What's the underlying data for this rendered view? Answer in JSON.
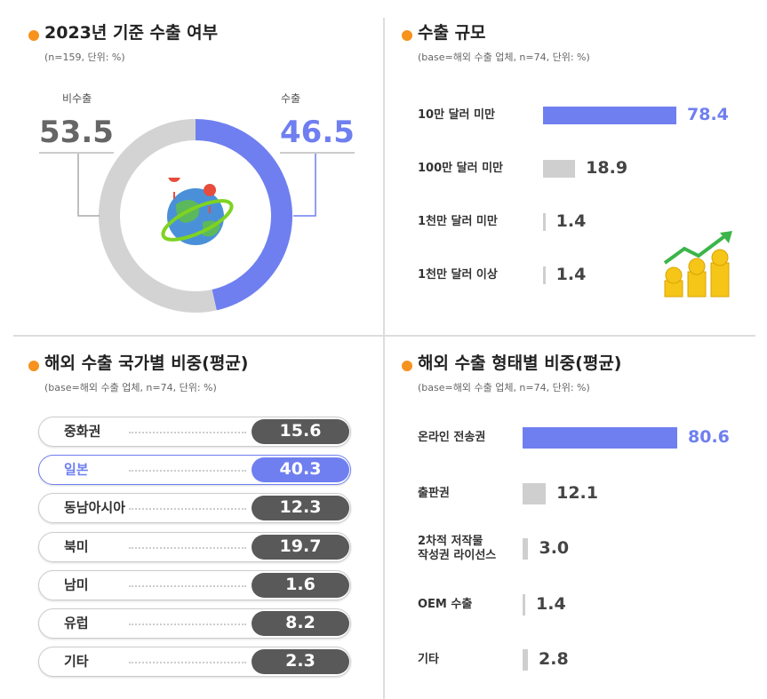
{
  "chart_data": [
    {
      "type": "donut",
      "title": "2023년 기준 수출 여부",
      "subtitle": "(n=159, 단위: %)",
      "categories": [
        "비수출",
        "수출"
      ],
      "values": [
        53.5,
        46.5
      ],
      "colors": [
        "#d3d3d3",
        "#6f7ff0"
      ]
    },
    {
      "type": "bar",
      "title": "수출 규모",
      "subtitle": "(base=해외 수출 업체, n=74, 단위: %)",
      "categories": [
        "10만 달러 미만",
        "100만 달러 미만",
        "1천만 달러 미만",
        "1천만 달러 이상"
      ],
      "values": [
        78.4,
        18.9,
        1.4,
        1.4
      ],
      "colors": [
        "#6f7ff0",
        "#cfcfcf",
        "#cfcfcf",
        "#cfcfcf"
      ]
    },
    {
      "type": "pill",
      "title": "해외 수출 국가별 비중(평균)",
      "subtitle": "(base=해외 수출 업체, n=74, 단위: %)",
      "categories": [
        "중화권",
        "일본",
        "동남아시아",
        "북미",
        "남미",
        "유럽",
        "기타"
      ],
      "values": [
        15.6,
        40.3,
        12.3,
        19.7,
        1.6,
        8.2,
        2.3
      ],
      "colors": [
        "#595959",
        "#6f7ff0",
        "#595959",
        "#595959",
        "#595959",
        "#595959",
        "#595959"
      ]
    },
    {
      "type": "bar",
      "title": "해외 수출 형태별 비중(평균)",
      "subtitle": "(base=해외 수출 업체, n=74, 단위: %)",
      "categories": [
        "온라인 전송권",
        "출판권",
        "2차적 저작물\n작성권 라이선스",
        "OEM 수출",
        "기타"
      ],
      "values": [
        80.6,
        12.1,
        3.0,
        1.4,
        2.8
      ],
      "value_labels": [
        "80.6",
        "12.1",
        "3.0",
        "1.4",
        "2.8"
      ],
      "colors": [
        "#6f7ff0",
        "#cfcfcf",
        "#cfcfcf",
        "#cfcfcf",
        "#cfcfcf"
      ]
    }
  ]
}
